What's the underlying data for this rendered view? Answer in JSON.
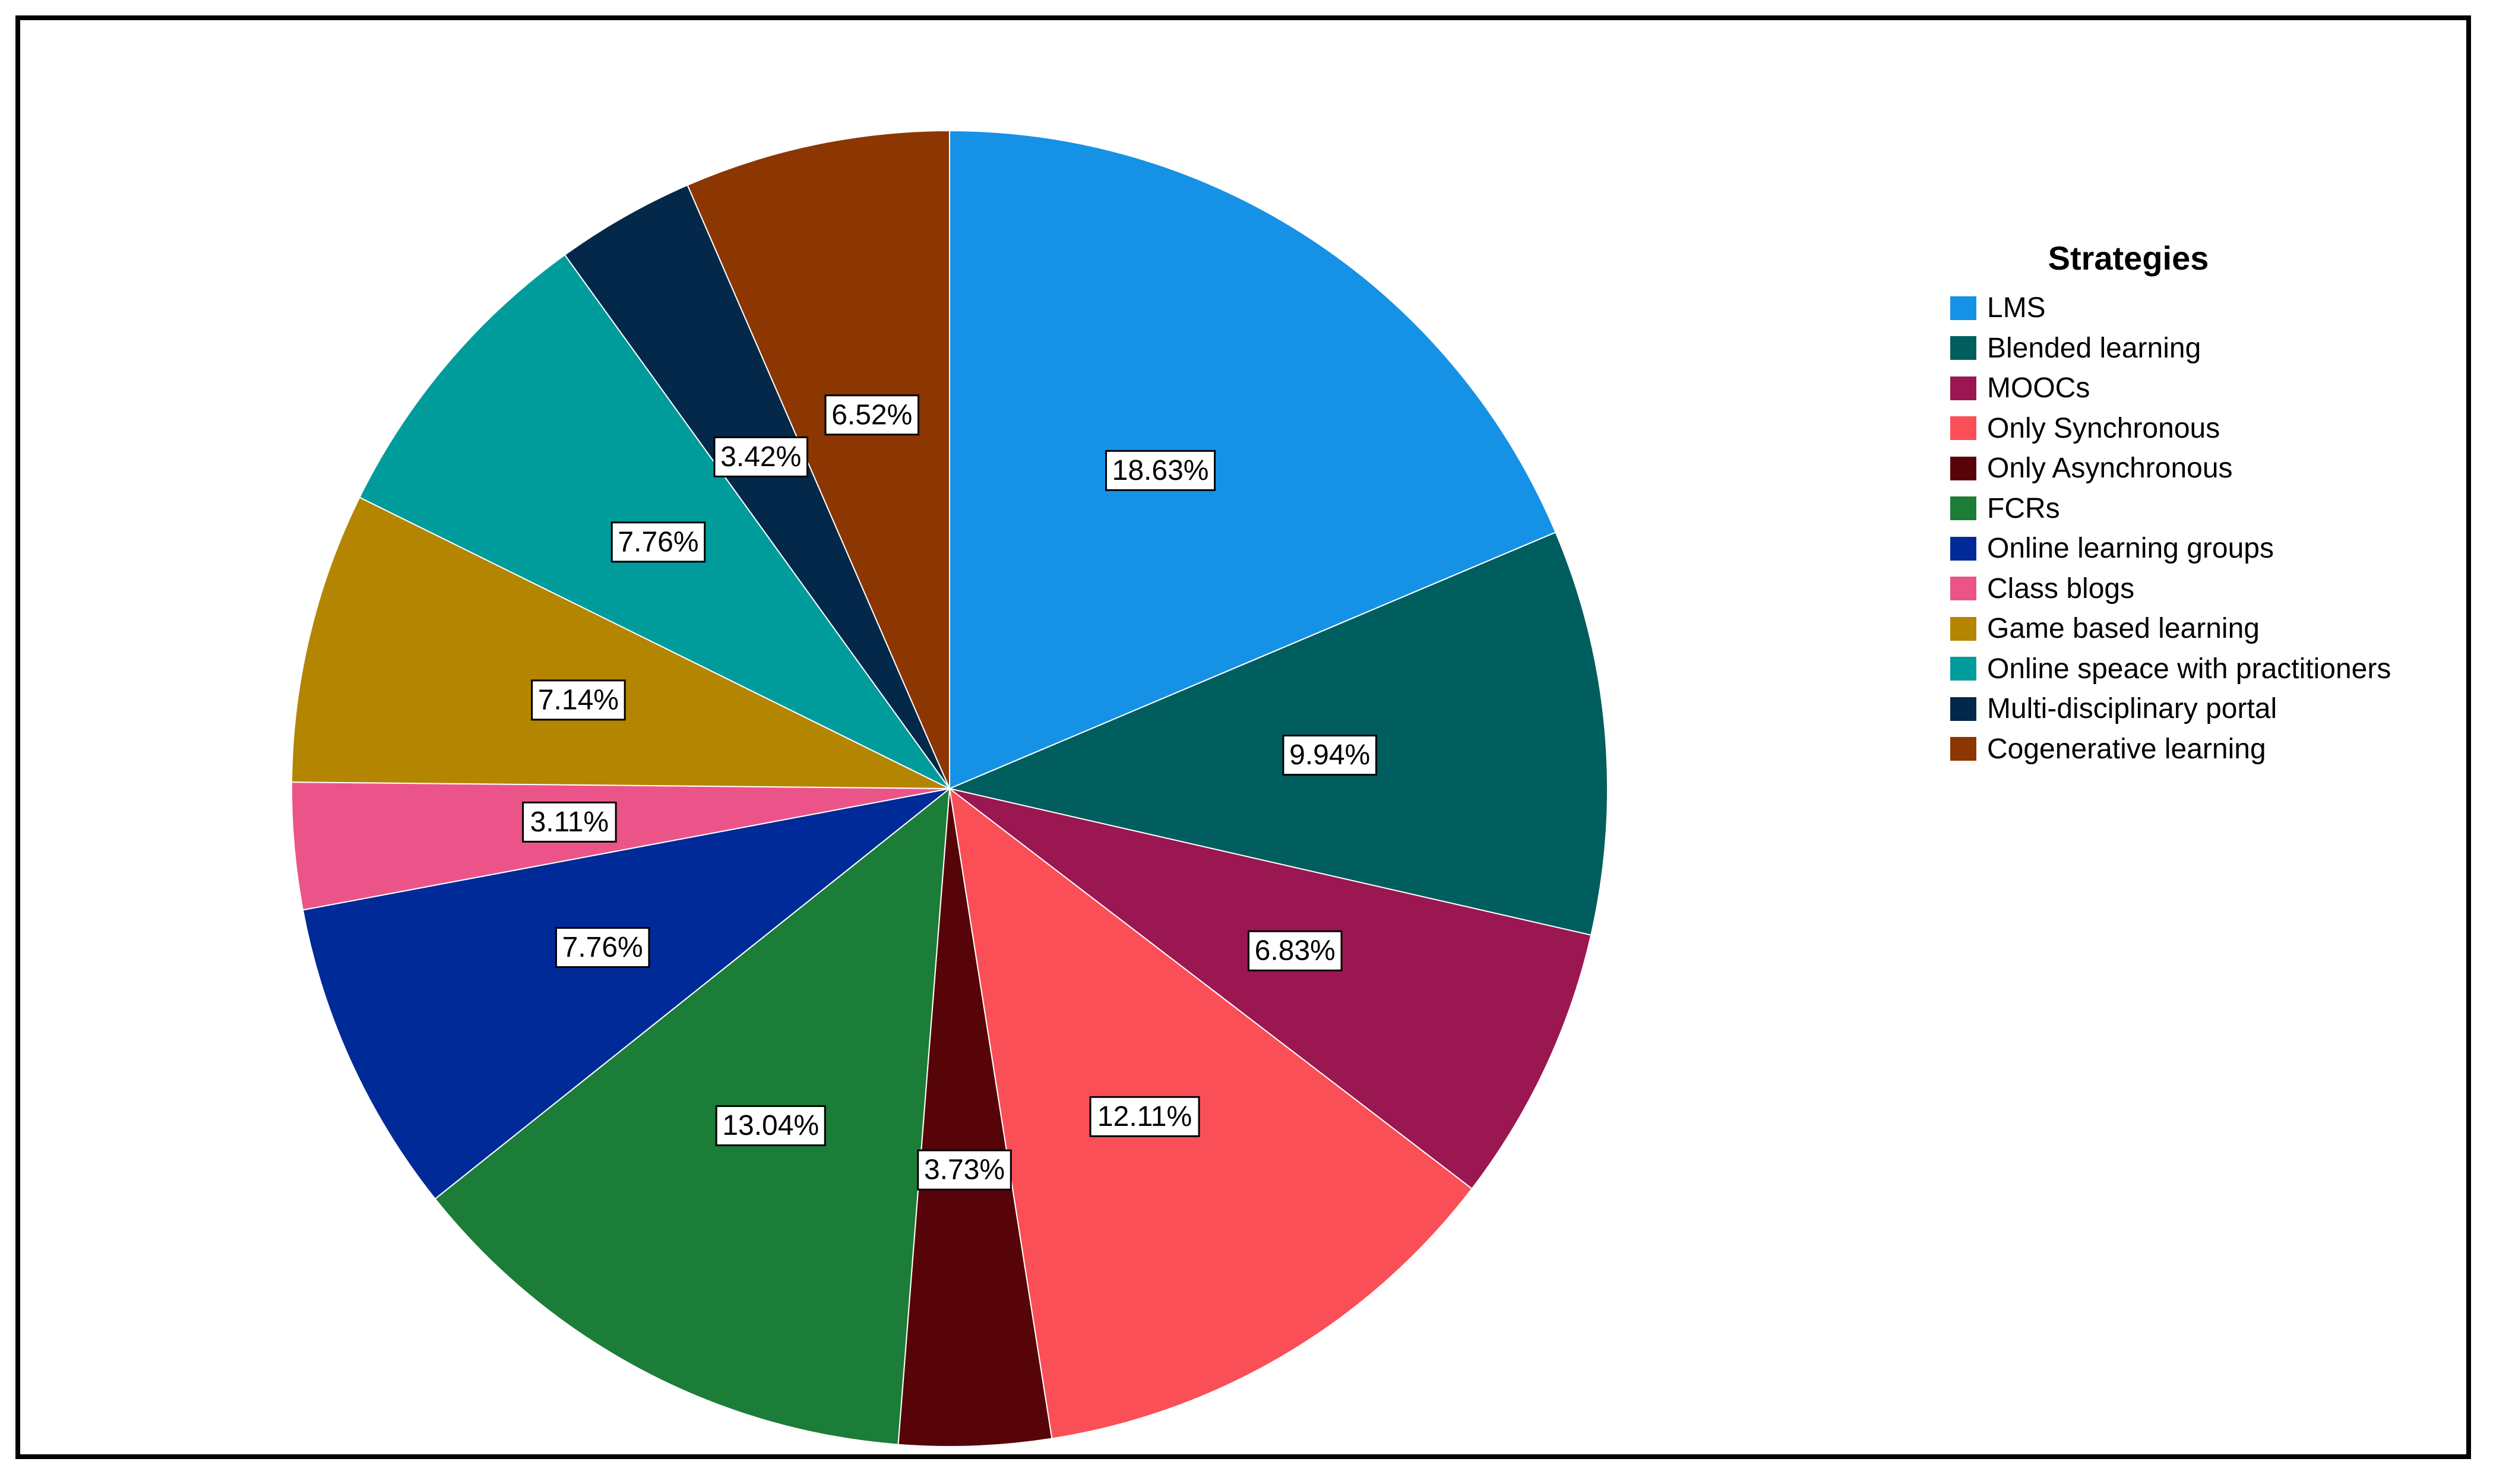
{
  "chart_data": {
    "type": "pie",
    "legend_title": "Strategies",
    "legend_position": "right",
    "slices": [
      {
        "label": "LMS",
        "value": 18.63,
        "display": "18.63%",
        "color": "#1592E6"
      },
      {
        "label": "Blended learning",
        "value": 9.94,
        "display": "9.94%",
        "color": "#005E5E"
      },
      {
        "label": "MOOCs",
        "value": 6.83,
        "display": "6.83%",
        "color": "#9A1752"
      },
      {
        "label": "Only Synchronous",
        "value": 12.11,
        "display": "12.11%",
        "color": "#FA4F57"
      },
      {
        "label": "Only Asynchronous",
        "value": 3.73,
        "display": "3.73%",
        "color": "#570408"
      },
      {
        "label": "FCRs",
        "value": 13.04,
        "display": "13.04%",
        "color": "#1B7D37"
      },
      {
        "label": "Online learning groups",
        "value": 7.76,
        "display": "7.76%",
        "color": "#002A98"
      },
      {
        "label": "Class blogs",
        "value": 3.11,
        "display": "3.11%",
        "color": "#EB5489"
      },
      {
        "label": "Game based learning",
        "value": 7.14,
        "display": "7.14%",
        "color": "#B38500"
      },
      {
        "label": "Online speace with practitioners",
        "value": 7.76,
        "display": "7.76%",
        "color": "#009C9C"
      },
      {
        "label": "Multi-disciplinary portal",
        "value": 3.42,
        "display": "3.42%",
        "color": "#03284A"
      },
      {
        "label": "Cogenerative learning",
        "value": 6.52,
        "display": "6.52%",
        "color": "#8C3601"
      }
    ]
  }
}
